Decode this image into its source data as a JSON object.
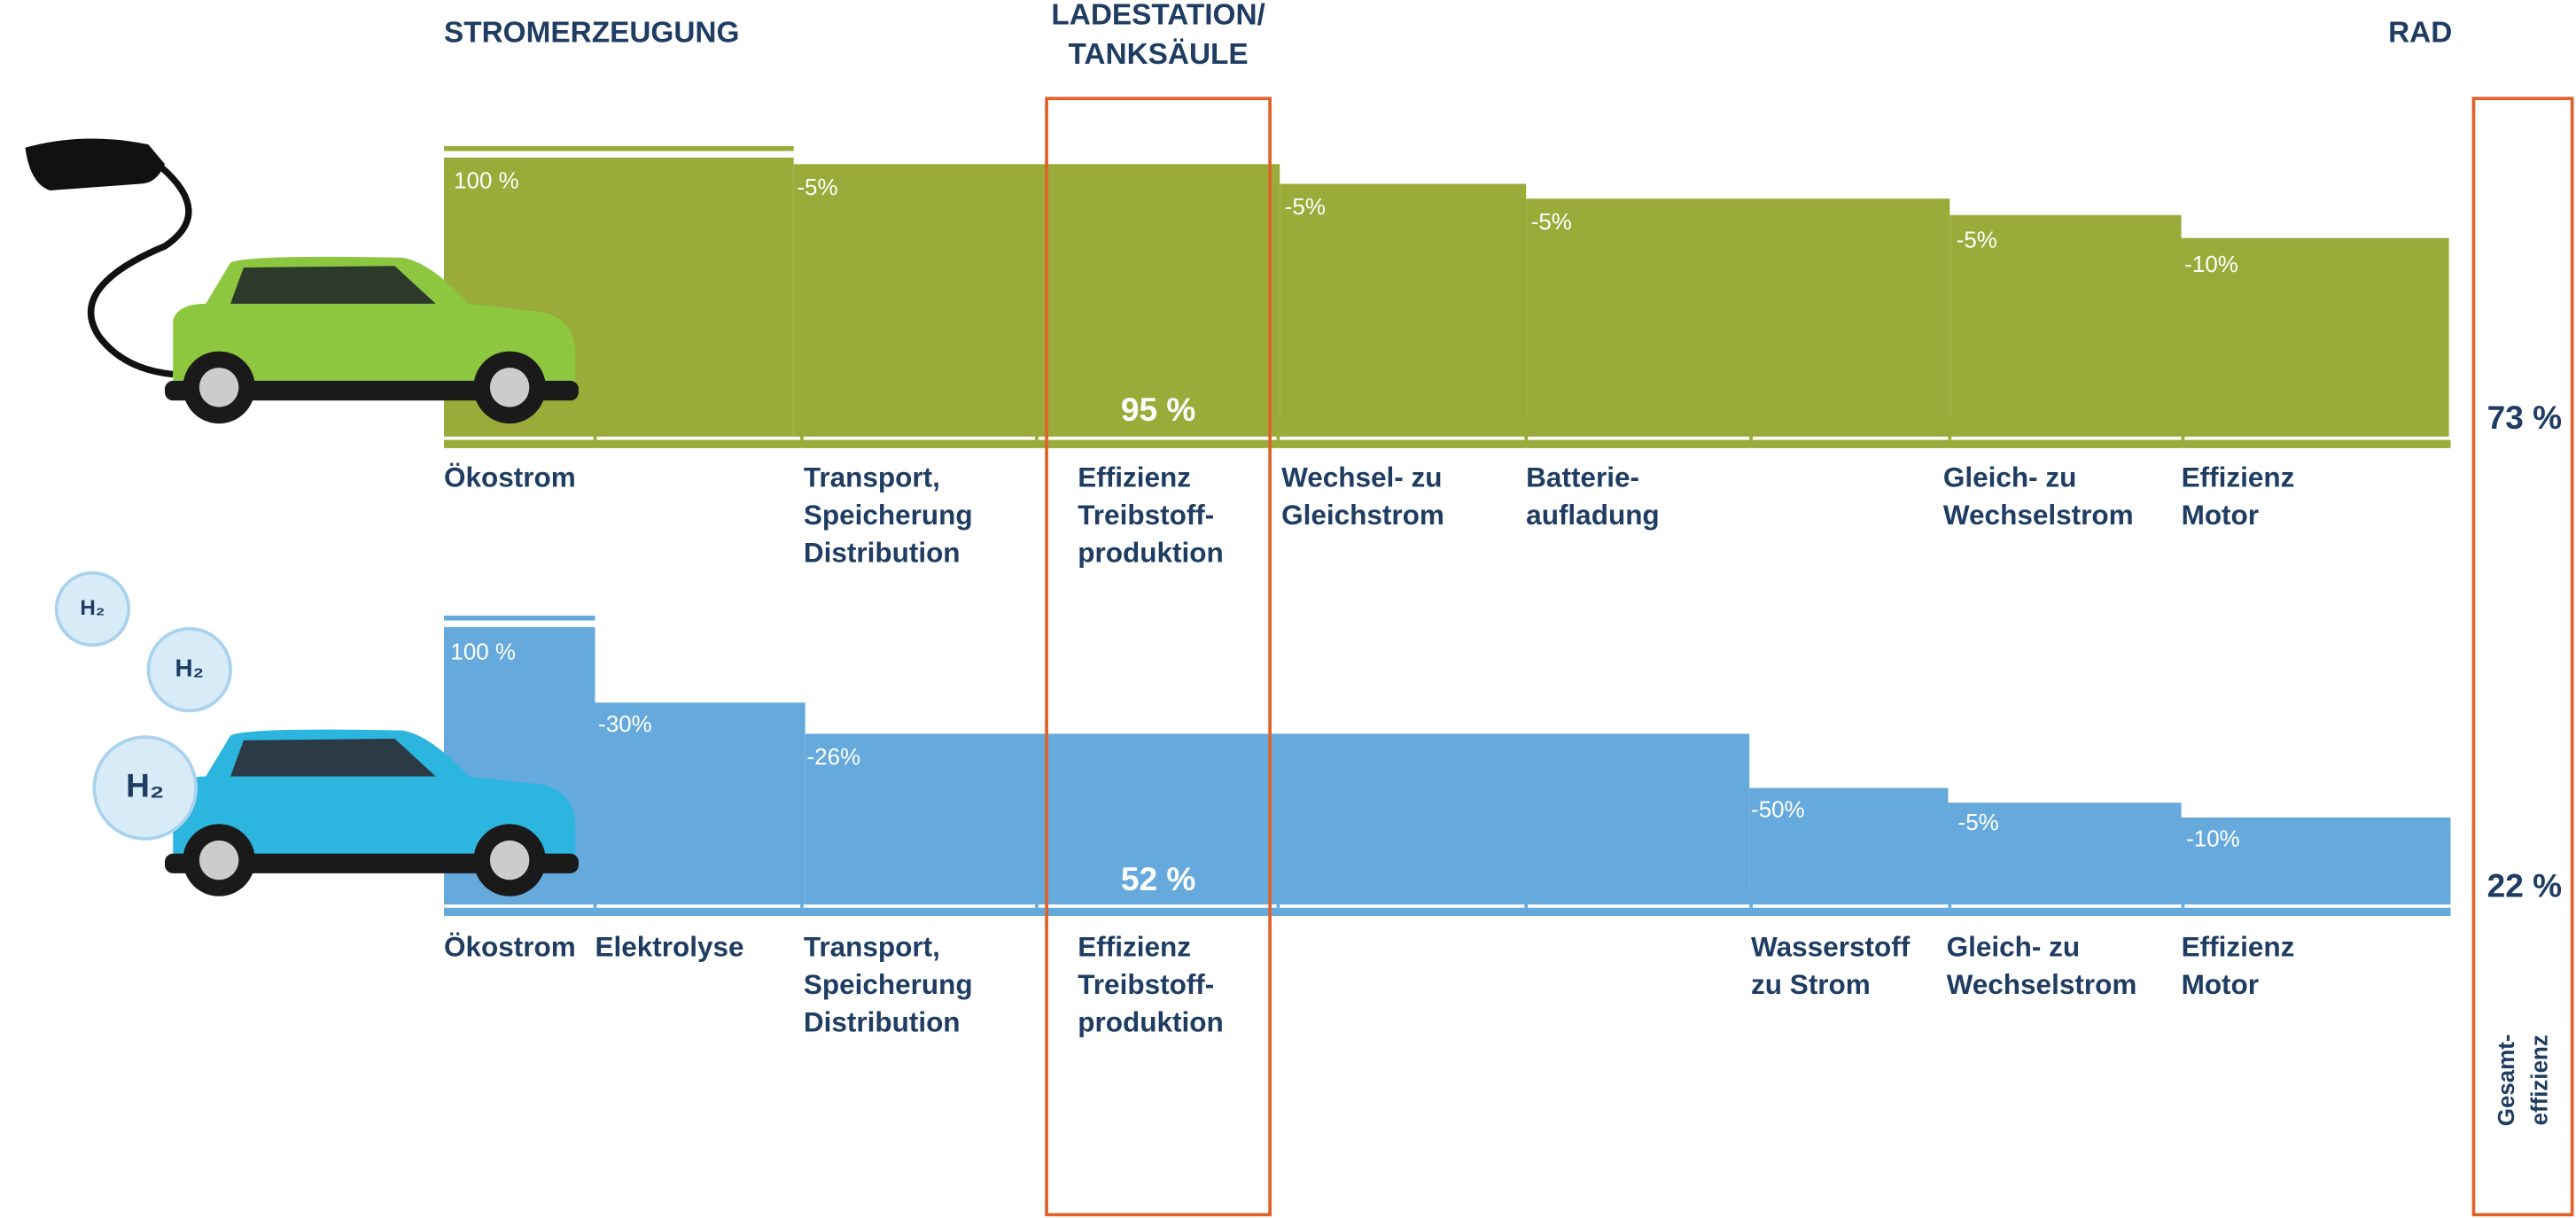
{
  "header": {
    "generation": "STROMERZEUGUNG",
    "station": [
      "LADESTATION/",
      "TANKSÄULE"
    ],
    "wheel": "RAD"
  },
  "battery": {
    "steps": [
      "100 %",
      "-5%",
      "-5%",
      "-5%",
      "-5%",
      "-10%"
    ],
    "station_efficiency": "95 %",
    "total": "73 %",
    "stages": [
      [
        "Ökostrom"
      ],
      [
        "Transport,",
        "Speicherung",
        "Distribution"
      ],
      [
        "Effizienz",
        "Treibstoff-",
        "produktion"
      ],
      [
        "Wechsel- zu",
        "Gleichstrom"
      ],
      [
        "Batterie-",
        "aufladung"
      ],
      [
        "Gleich- zu",
        "Wechselstrom"
      ],
      [
        "Effizienz",
        "Motor"
      ]
    ]
  },
  "hydrogen": {
    "steps": [
      "100 %",
      "-30%",
      "-26%",
      "-50%",
      "-5%",
      "-10%"
    ],
    "station_efficiency": "52 %",
    "total": "22 %",
    "stages": [
      [
        "Ökostrom"
      ],
      [
        "Elektrolyse"
      ],
      [
        "Transport,",
        "Speicherung",
        "Distribution"
      ],
      [
        "Effizienz",
        "Treibstoff-",
        "produktion"
      ],
      [
        "Wasserstoff",
        "zu Strom"
      ],
      [
        "Gleich- zu",
        "Wechselstrom"
      ],
      [
        "Effizienz",
        "Motor"
      ]
    ],
    "bubbles": [
      "H₂",
      "H₂",
      "H₂"
    ]
  },
  "total_label": [
    "Gesamt-",
    "effizienz"
  ]
}
